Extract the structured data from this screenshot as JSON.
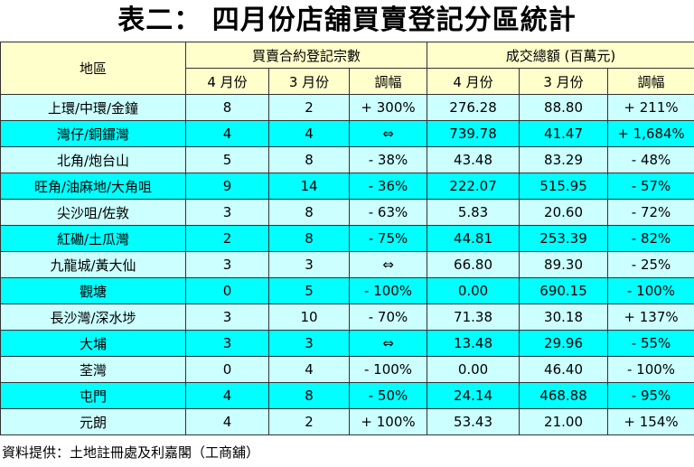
{
  "header": {
    "title": "表二： 四月份店舖買賣登記分區統計"
  },
  "table": {
    "group_headers": [
      "地區",
      "買賣合約登記宗數",
      "成交總額 (百萬元)"
    ],
    "sub_headers": [
      "4 月份",
      "3 月份",
      "調幅",
      "4 月份",
      "3 月份",
      "調幅"
    ],
    "rows": [
      [
        "上環/中環/金鐘",
        "8",
        "2",
        "+ 300%",
        "276.28",
        "88.80",
        "+ 211%"
      ],
      [
        "灣仔/銅鑼灣",
        "4",
        "4",
        "⇔",
        "739.78",
        "41.47",
        "+ 1,684%"
      ],
      [
        "北角/炮台山",
        "5",
        "8",
        "- 38%",
        "43.48",
        "83.29",
        "- 48%"
      ],
      [
        "旺角/油麻地/大角咀",
        "9",
        "14",
        "- 36%",
        "222.07",
        "515.95",
        "- 57%"
      ],
      [
        "尖沙咀/佐敦",
        "3",
        "8",
        "- 63%",
        "5.83",
        "20.60",
        "- 72%"
      ],
      [
        "紅磡/土瓜灣",
        "2",
        "8",
        "- 75%",
        "44.81",
        "253.39",
        "- 82%"
      ],
      [
        "九龍城/黃大仙",
        "3",
        "3",
        "⇔",
        "66.80",
        "89.30",
        "- 25%"
      ],
      [
        "觀塘",
        "0",
        "5",
        "- 100%",
        "0.00",
        "690.15",
        "- 100%"
      ],
      [
        "長沙灣/深水埗",
        "3",
        "10",
        "- 70%",
        "71.38",
        "30.18",
        "+ 137%"
      ],
      [
        "大埔",
        "3",
        "3",
        "⇔",
        "13.48",
        "29.96",
        "- 55%"
      ],
      [
        "荃灣",
        "0",
        "4",
        "- 100%",
        "0.00",
        "46.40",
        "- 100%"
      ],
      [
        "屯門",
        "4",
        "8",
        "- 50%",
        "24.14",
        "468.88",
        "- 95%"
      ],
      [
        "元朗",
        "4",
        "2",
        "+ 100%",
        "53.43",
        "21.00",
        "+ 154%"
      ]
    ]
  },
  "footer": {
    "source": "資料提供：土地註冊處及利嘉閣（工商舖）"
  }
}
